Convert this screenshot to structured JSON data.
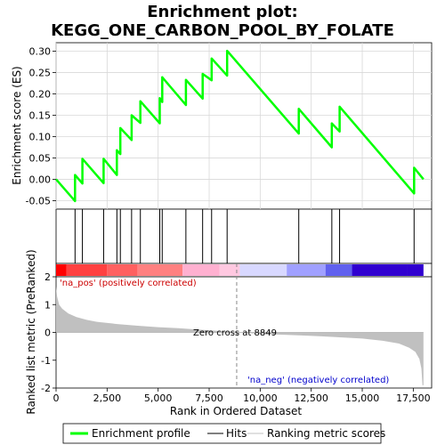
{
  "chart_data": {
    "type": "line",
    "title_line1": "Enrichment plot:",
    "title_line2": "KEGG_ONE_CARBON_POOL_BY_FOLATE",
    "top_panel": {
      "ylabel": "Enrichment score (ES)",
      "ylim": [
        -0.07,
        0.32
      ],
      "yticks": [
        -0.05,
        0.0,
        0.05,
        0.1,
        0.15,
        0.2,
        0.25,
        0.3
      ],
      "ytick_labels": [
        "-0.05",
        "0.00",
        "0.05",
        "0.10",
        "0.15",
        "0.20",
        "0.25",
        "0.30"
      ],
      "grid": true,
      "series": [
        {
          "name": "Enrichment profile",
          "color": "#00ff00",
          "x": [
            0,
            930,
            930,
            1290,
            1290,
            2330,
            2330,
            2980,
            2980,
            3150,
            3150,
            3700,
            3700,
            4130,
            4130,
            5080,
            5080,
            5200,
            5200,
            6360,
            6360,
            7180,
            7180,
            7620,
            7620,
            8380,
            8380,
            11890,
            11890,
            13510,
            13510,
            13890,
            13890,
            17540,
            17540,
            18000
          ],
          "y": [
            0.0,
            -0.051,
            0.01,
            -0.01,
            0.048,
            -0.009,
            0.048,
            0.01,
            0.068,
            0.059,
            0.12,
            0.092,
            0.15,
            0.132,
            0.183,
            0.131,
            0.19,
            0.181,
            0.239,
            0.174,
            0.233,
            0.189,
            0.247,
            0.232,
            0.283,
            0.243,
            0.301,
            0.107,
            0.165,
            0.075,
            0.131,
            0.112,
            0.17,
            -0.033,
            0.027,
            0.0
          ]
        }
      ],
      "hits": [
        930,
        1290,
        2330,
        2980,
        3150,
        3700,
        4130,
        5080,
        5200,
        6360,
        7180,
        7620,
        8380,
        11890,
        13510,
        13890,
        17540
      ]
    },
    "heatmap_colors": [
      "#ff0000",
      "#ff4040",
      "#ff6060",
      "#ff8080",
      "#ffb0d0",
      "#ffc8e0",
      "#d8d8ff",
      "#a0a0ff",
      "#6060ee",
      "#3000d0"
    ],
    "heatmap_stops": [
      0,
      500,
      2500,
      4000,
      6200,
      8000,
      9000,
      11300,
      13200,
      14500,
      17200,
      18000
    ],
    "bottom_panel": {
      "ylabel": "Ranked list metric (PreRanked)",
      "ylim": [
        -2,
        2
      ],
      "yticks": [
        -2,
        -1,
        0,
        1,
        2
      ],
      "ytick_labels": [
        "-2",
        "-1",
        "0",
        "1",
        "2"
      ],
      "xlabel": "Rank in Ordered Dataset",
      "xlim": [
        0,
        18400
      ],
      "xticks": [
        0,
        2500,
        5000,
        7500,
        10000,
        12500,
        15000,
        17500
      ],
      "xtick_labels": [
        "0",
        "2,500",
        "5,000",
        "7,500",
        "10,000",
        "12,500",
        "15,000",
        "17,500"
      ],
      "zero_cross": 8849,
      "zero_cross_label": "Zero cross at 8849",
      "pos_label": "'na_pos' (positively correlated)",
      "neg_label": "'na_neg' (negatively correlated)",
      "pos_color": "#cc0000",
      "neg_color": "#0000cc",
      "metric_fill_color": "#c0c0c0",
      "metric_points": [
        [
          0,
          1.65
        ],
        [
          50,
          1.3
        ],
        [
          150,
          1.0
        ],
        [
          300,
          0.85
        ],
        [
          600,
          0.68
        ],
        [
          1000,
          0.55
        ],
        [
          1500,
          0.45
        ],
        [
          2000,
          0.38
        ],
        [
          3000,
          0.3
        ],
        [
          4000,
          0.24
        ],
        [
          5000,
          0.19
        ],
        [
          6000,
          0.15
        ],
        [
          7000,
          0.1
        ],
        [
          8000,
          0.05
        ],
        [
          8849,
          0.0
        ],
        [
          10000,
          -0.05
        ],
        [
          11000,
          -0.08
        ],
        [
          12000,
          -0.11
        ],
        [
          13000,
          -0.14
        ],
        [
          14000,
          -0.18
        ],
        [
          15000,
          -0.22
        ],
        [
          16000,
          -0.3
        ],
        [
          16800,
          -0.4
        ],
        [
          17300,
          -0.55
        ],
        [
          17600,
          -0.7
        ],
        [
          17800,
          -0.95
        ],
        [
          17900,
          -1.3
        ],
        [
          17950,
          -1.9
        ],
        [
          18000,
          -1.9
        ]
      ]
    },
    "legend": [
      {
        "label": "Enrichment profile",
        "color": "#00ff00"
      },
      {
        "label": "Hits",
        "color": "#000000"
      },
      {
        "label": "Ranking metric scores",
        "color": "#c0c0c0"
      }
    ]
  }
}
